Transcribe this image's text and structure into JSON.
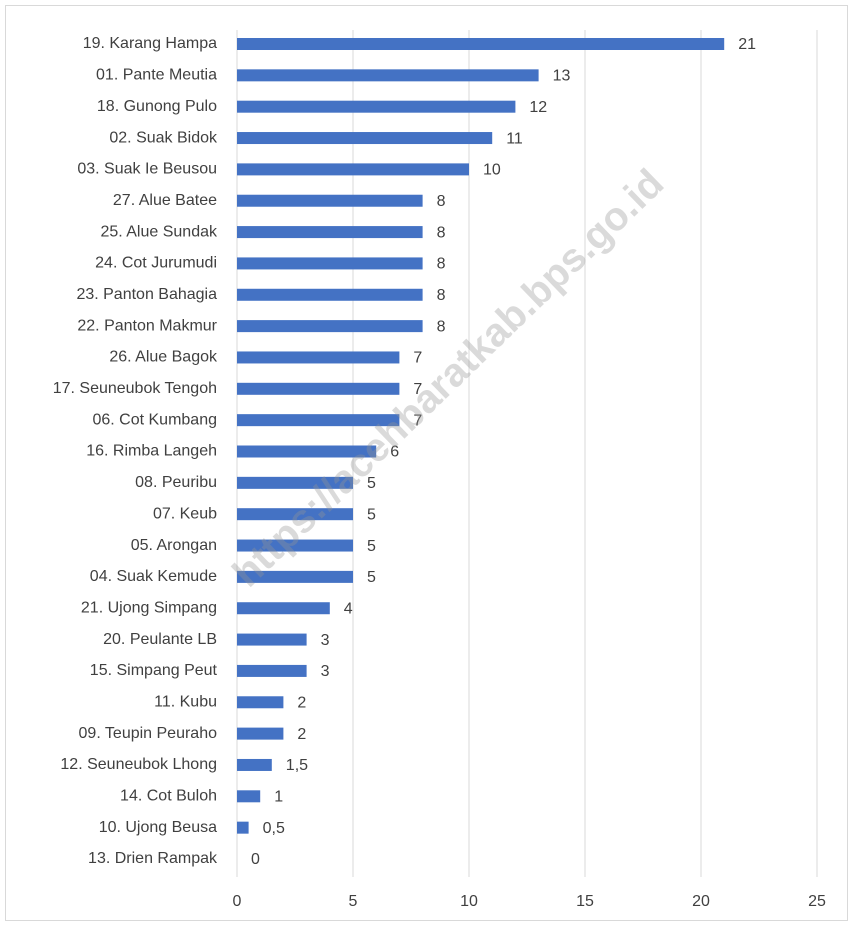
{
  "chart_data": {
    "type": "bar",
    "orientation": "horizontal",
    "watermark": "https://acehbaratkab.bps.go.id",
    "categories": [
      "19. Karang Hampa",
      "01. Pante Meutia",
      "18. Gunong Pulo",
      "02. Suak Bidok",
      "03. Suak Ie Beusou",
      "27. Alue Batee",
      "25. Alue Sundak",
      "24. Cot Jurumudi",
      "23. Panton Bahagia",
      "22. Panton Makmur",
      "26. Alue Bagok",
      "17. Seuneubok Tengoh",
      "06. Cot Kumbang",
      "16. Rimba Langeh",
      "08. Peuribu",
      "07. Keub",
      "05. Arongan",
      "04. Suak Kemude",
      "21. Ujong Simpang",
      "20. Peulante LB",
      "15. Simpang Peut",
      "11. Kubu",
      "09. Teupin Peuraho",
      "12. Seuneubok Lhong",
      "14. Cot Buloh",
      "10. Ujong Beusa",
      "13. Drien Rampak"
    ],
    "values": [
      21,
      13,
      12,
      11,
      10,
      8,
      8,
      8,
      8,
      8,
      7,
      7,
      7,
      6,
      5,
      5,
      5,
      5,
      4,
      3,
      3,
      2,
      2,
      1.5,
      1,
      0.5,
      0
    ],
    "value_labels": [
      "21",
      "13",
      "12",
      "11",
      "10",
      "8",
      "8",
      "8",
      "8",
      "8",
      "7",
      "7",
      "7",
      "6",
      "5",
      "5",
      "5",
      "5",
      "4",
      "3",
      "3",
      "2",
      "2",
      "1,5",
      "1",
      "0,5",
      "0"
    ],
    "color": "#4472c4",
    "xlim": [
      0,
      25
    ],
    "xticks": [
      0,
      5,
      10,
      15,
      20,
      25
    ],
    "grid": true
  }
}
